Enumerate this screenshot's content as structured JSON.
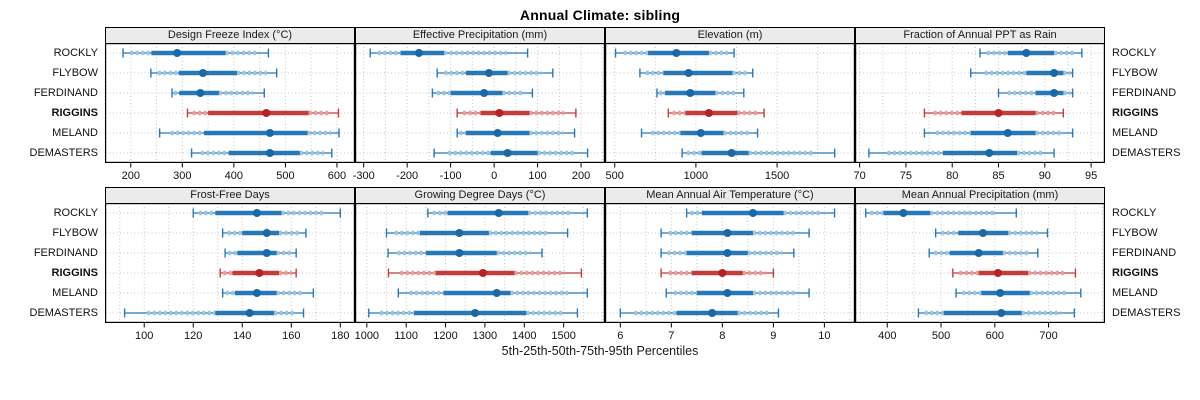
{
  "title": "Annual Climate: sibling",
  "caption": "5th-25th-50th-75th-95th Percentiles",
  "stations": [
    "ROCKLY",
    "FLYBOW",
    "FERDINAND",
    "RIGGINS",
    "MELAND",
    "DEMASTERS"
  ],
  "highlighted_station": "RIGGINS",
  "percentile_labels": [
    "5th",
    "25th",
    "50th",
    "75th",
    "95th"
  ],
  "colors": {
    "series": "#2878b8",
    "series_light": "#9fc6e0",
    "series_dot": "#1a68a6",
    "highlight": "#c43c3c",
    "highlight_light": "#e2a3a0",
    "highlight_dot": "#b42424",
    "strip_bg": "#ebebeb",
    "grid_line": "#c6c6c6",
    "border": "#000000"
  },
  "chart_data": {
    "type": "dotplot-intervals",
    "layout": {
      "rows": 2,
      "cols": 4
    },
    "note": "each series row = [5th,25th,50th,75th,95th] percentiles",
    "panels": [
      {
        "title": "Design Freeze Index (°C)",
        "xlim": [
          150,
          635
        ],
        "ticks": [
          200,
          300,
          400,
          500,
          600
        ],
        "series": [
          {
            "station": "ROCKLY",
            "p": [
              185,
              240,
              290,
              384,
              467
            ]
          },
          {
            "station": "FLYBOW",
            "p": [
              239,
              293,
              340,
              406,
              483
            ]
          },
          {
            "station": "FERDINAND",
            "p": [
              280,
              294,
              335,
              371,
              459
            ]
          },
          {
            "station": "RIGGINS",
            "p": [
              310,
              350,
              463,
              545,
              603
            ]
          },
          {
            "station": "MELAND",
            "p": [
              256,
              342,
              470,
              543,
              604
            ]
          },
          {
            "station": "DEMASTERS",
            "p": [
              318,
              390,
              470,
              528,
              590
            ]
          }
        ]
      },
      {
        "title": "Effective Precipitation (mm)",
        "xlim": [
          -320,
          255
        ],
        "ticks": [
          -300,
          -200,
          -100,
          0,
          100,
          200
        ],
        "series": [
          {
            "station": "ROCKLY",
            "p": [
              -285,
              -215,
              -173,
              -115,
              77
            ]
          },
          {
            "station": "FLYBOW",
            "p": [
              -131,
              -65,
              -12,
              31,
              135
            ]
          },
          {
            "station": "FERDINAND",
            "p": [
              -142,
              -100,
              -23,
              19,
              88
            ]
          },
          {
            "station": "RIGGINS",
            "p": [
              -85,
              -31,
              12,
              81,
              188
            ]
          },
          {
            "station": "MELAND",
            "p": [
              -85,
              -65,
              8,
              81,
              185
            ]
          },
          {
            "station": "DEMASTERS",
            "p": [
              -138,
              -8,
              31,
              100,
              215
            ]
          }
        ]
      },
      {
        "title": "Elevation (m)",
        "xlim": [
          440,
          1980
        ],
        "ticks": [
          500,
          1000,
          1500
        ],
        "series": [
          {
            "station": "ROCKLY",
            "p": [
              505,
              705,
              880,
              1080,
              1235
            ]
          },
          {
            "station": "FLYBOW",
            "p": [
              655,
              800,
              955,
              1225,
              1350
            ]
          },
          {
            "station": "FERDINAND",
            "p": [
              760,
              810,
              965,
              1120,
              1295
            ]
          },
          {
            "station": "RIGGINS",
            "p": [
              830,
              935,
              1080,
              1255,
              1420
            ]
          },
          {
            "station": "MELAND",
            "p": [
              665,
              905,
              1030,
              1170,
              1380
            ]
          },
          {
            "station": "DEMASTERS",
            "p": [
              915,
              1035,
              1220,
              1325,
              1855
            ]
          }
        ]
      },
      {
        "title": "Fraction of Annual PPT as Rain",
        "xlim": [
          69.5,
          96.5
        ],
        "ticks": [
          70,
          75,
          80,
          85,
          90,
          95
        ],
        "series": [
          {
            "station": "ROCKLY",
            "p": [
              83,
              86,
              88,
              91,
              94
            ]
          },
          {
            "station": "FLYBOW",
            "p": [
              82,
              88,
              91,
              92,
              93
            ]
          },
          {
            "station": "FERDINAND",
            "p": [
              85,
              89,
              91,
              92,
              93
            ]
          },
          {
            "station": "RIGGINS",
            "p": [
              77,
              81,
              85,
              89,
              92
            ]
          },
          {
            "station": "MELAND",
            "p": [
              77,
              82,
              86,
              89,
              93
            ]
          },
          {
            "station": "DEMASTERS",
            "p": [
              71,
              79,
              84,
              87,
              91
            ]
          }
        ]
      },
      {
        "title": "Frost-Free Days",
        "xlim": [
          84,
          186
        ],
        "ticks": [
          100,
          120,
          140,
          160,
          180
        ],
        "series": [
          {
            "station": "ROCKLY",
            "p": [
              120,
              129,
              146,
              156,
              180
            ]
          },
          {
            "station": "FLYBOW",
            "p": [
              132,
              140,
              150,
              155,
              166
            ]
          },
          {
            "station": "FERDINAND",
            "p": [
              133,
              138,
              150,
              154,
              162
            ]
          },
          {
            "station": "RIGGINS",
            "p": [
              131,
              136,
              147,
              155,
              162
            ]
          },
          {
            "station": "MELAND",
            "p": [
              132,
              137,
              146,
              154,
              169
            ]
          },
          {
            "station": "DEMASTERS",
            "p": [
              92,
              129,
              143,
              153,
              165
            ]
          }
        ]
      },
      {
        "title": "Growing Degree Days (°C)",
        "xlim": [
          970,
          1605
        ],
        "ticks": [
          1000,
          1100,
          1200,
          1300,
          1400,
          1500
        ],
        "series": [
          {
            "station": "ROCKLY",
            "p": [
              1155,
              1205,
              1335,
              1410,
              1560
            ]
          },
          {
            "station": "FLYBOW",
            "p": [
              1050,
              1135,
              1235,
              1310,
              1510
            ]
          },
          {
            "station": "FERDINAND",
            "p": [
              1054,
              1150,
              1235,
              1330,
              1445
            ]
          },
          {
            "station": "RIGGINS",
            "p": [
              1055,
              1175,
              1295,
              1375,
              1545
            ]
          },
          {
            "station": "MELAND",
            "p": [
              1080,
              1195,
              1330,
              1365,
              1560
            ]
          },
          {
            "station": "DEMASTERS",
            "p": [
              1005,
              1120,
              1275,
              1405,
              1535
            ]
          }
        ]
      },
      {
        "title": "Mean Annual Air Temperature (°C)",
        "xlim": [
          5.7,
          10.6
        ],
        "ticks": [
          6,
          7,
          8,
          9,
          10
        ],
        "series": [
          {
            "station": "ROCKLY",
            "p": [
              7.3,
              7.6,
              8.6,
              9.2,
              10.2
            ]
          },
          {
            "station": "FLYBOW",
            "p": [
              6.8,
              7.4,
              8.1,
              8.6,
              9.7
            ]
          },
          {
            "station": "FERDINAND",
            "p": [
              6.8,
              7.3,
              8.1,
              8.5,
              9.4
            ]
          },
          {
            "station": "RIGGINS",
            "p": [
              6.8,
              7.4,
              8.0,
              8.4,
              9.0
            ]
          },
          {
            "station": "MELAND",
            "p": [
              6.9,
              7.5,
              8.1,
              8.6,
              9.7
            ]
          },
          {
            "station": "DEMASTERS",
            "p": [
              6.0,
              7.1,
              7.8,
              8.3,
              9.1
            ]
          }
        ]
      },
      {
        "title": "Mean Annual Precipitation (mm)",
        "xlim": [
          340,
          805
        ],
        "ticks": [
          400,
          500,
          600,
          700
        ],
        "series": [
          {
            "station": "ROCKLY",
            "p": [
              360,
              393,
              430,
              480,
              640
            ]
          },
          {
            "station": "FLYBOW",
            "p": [
              490,
              532,
              578,
              625,
              698
            ]
          },
          {
            "station": "FERDINAND",
            "p": [
              478,
              516,
              570,
              615,
              680
            ]
          },
          {
            "station": "RIGGINS",
            "p": [
              522,
              570,
              606,
              662,
              750
            ]
          },
          {
            "station": "MELAND",
            "p": [
              528,
              575,
              610,
              665,
              760
            ]
          },
          {
            "station": "DEMASTERS",
            "p": [
              458,
              505,
              612,
              650,
              748
            ]
          }
        ]
      }
    ]
  }
}
